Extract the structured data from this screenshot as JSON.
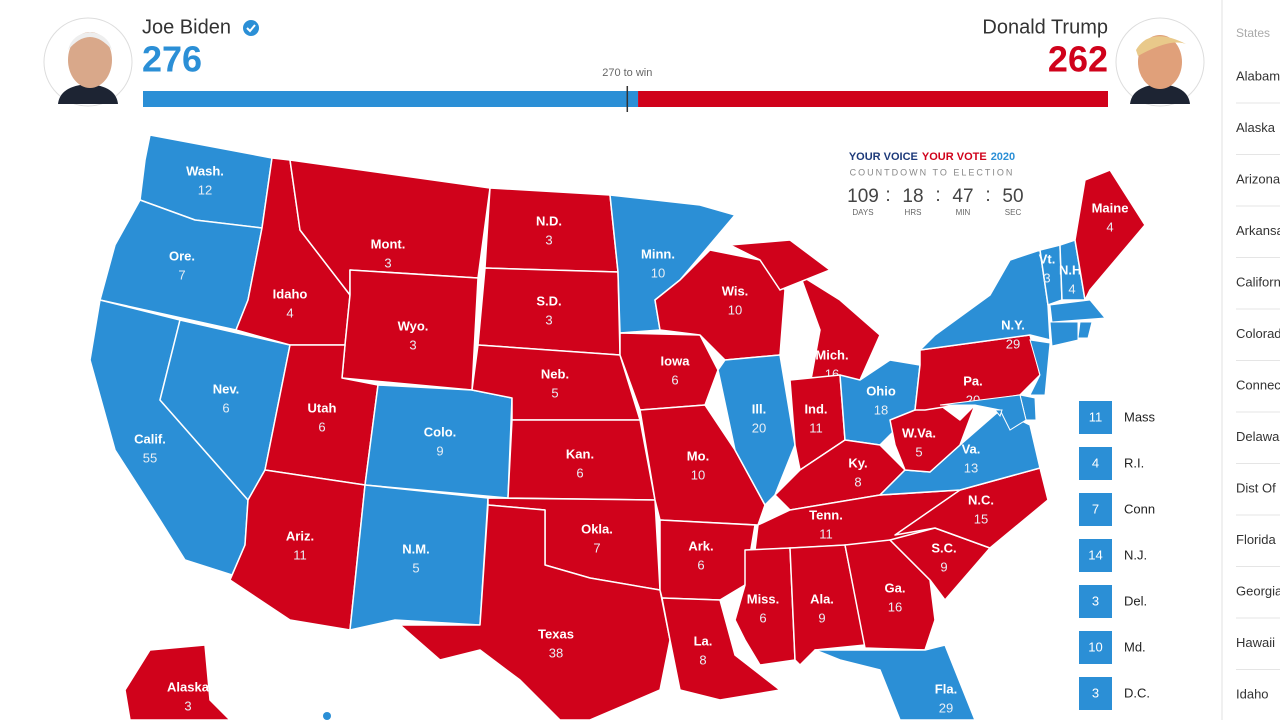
{
  "header": {
    "candidates": [
      {
        "name": "Joe Biden",
        "votes": 276,
        "color": "#2b8fd6"
      },
      {
        "name": "Donald Trump",
        "votes": 262,
        "color": "#d0021b"
      }
    ],
    "threshold": {
      "value": 270,
      "label": "270 to win"
    }
  },
  "countdown": {
    "title": [
      "YOUR VOICE",
      "YOUR VOTE",
      "2020"
    ],
    "subtitle": "COUNTDOWN TO ELECTION",
    "separator": ":",
    "units": [
      {
        "value": 109,
        "label": "DAYS"
      },
      {
        "value": 18,
        "label": "HRS"
      },
      {
        "value": 47,
        "label": "MIN"
      },
      {
        "value": 50,
        "label": "SEC"
      }
    ]
  },
  "map": {
    "states": [
      {
        "label": "Wash.",
        "votes": 12,
        "color": "#2b8fd6"
      },
      {
        "label": "Ore.",
        "votes": 7,
        "color": "#2b8fd6"
      },
      {
        "label": "Calif.",
        "votes": 55,
        "color": "#2b8fd6"
      },
      {
        "label": "Nev.",
        "votes": 6,
        "color": "#2b8fd6"
      },
      {
        "label": "Idaho",
        "votes": 4,
        "color": "#d0021b"
      },
      {
        "label": "Mont.",
        "votes": 3,
        "color": "#d0021b"
      },
      {
        "label": "Wyo.",
        "votes": 3,
        "color": "#d0021b"
      },
      {
        "label": "Utah",
        "votes": 6,
        "color": "#d0021b"
      },
      {
        "label": "Ariz.",
        "votes": 11,
        "color": "#d0021b"
      },
      {
        "label": "Colo.",
        "votes": 9,
        "color": "#2b8fd6"
      },
      {
        "label": "N.M.",
        "votes": 5,
        "color": "#2b8fd6"
      },
      {
        "label": "N.D.",
        "votes": 3,
        "color": "#d0021b"
      },
      {
        "label": "S.D.",
        "votes": 3,
        "color": "#d0021b"
      },
      {
        "label": "Neb.",
        "votes": 5,
        "color": "#d0021b"
      },
      {
        "label": "Kan.",
        "votes": 6,
        "color": "#d0021b"
      },
      {
        "label": "Okla.",
        "votes": 7,
        "color": "#d0021b"
      },
      {
        "label": "Texas",
        "votes": 38,
        "color": "#d0021b"
      },
      {
        "label": "Minn.",
        "votes": 10,
        "color": "#2b8fd6"
      },
      {
        "label": "Iowa",
        "votes": 6,
        "color": "#d0021b"
      },
      {
        "label": "Mo.",
        "votes": 10,
        "color": "#d0021b"
      },
      {
        "label": "Ark.",
        "votes": 6,
        "color": "#d0021b"
      },
      {
        "label": "La.",
        "votes": 8,
        "color": "#d0021b"
      },
      {
        "label": "Wis.",
        "votes": 10,
        "color": "#d0021b"
      },
      {
        "label": "Ill.",
        "votes": 20,
        "color": "#2b8fd6"
      },
      {
        "label": "Mich.",
        "votes": 16,
        "color": "#d0021b"
      },
      {
        "label": "Ind.",
        "votes": 11,
        "color": "#d0021b"
      },
      {
        "label": "Ohio",
        "votes": 18,
        "color": "#2b8fd6"
      },
      {
        "label": "Ky.",
        "votes": 8,
        "color": "#d0021b"
      },
      {
        "label": "Tenn.",
        "votes": 11,
        "color": "#d0021b"
      },
      {
        "label": "Miss.",
        "votes": 6,
        "color": "#d0021b"
      },
      {
        "label": "Ala.",
        "votes": 9,
        "color": "#d0021b"
      },
      {
        "label": "Ga.",
        "votes": 16,
        "color": "#d0021b"
      },
      {
        "label": "Fla.",
        "votes": 29,
        "color": "#2b8fd6"
      },
      {
        "label": "S.C.",
        "votes": 9,
        "color": "#d0021b"
      },
      {
        "label": "N.C.",
        "votes": 15,
        "color": "#d0021b"
      },
      {
        "label": "Va.",
        "votes": 13,
        "color": "#2b8fd6"
      },
      {
        "label": "W.Va.",
        "votes": 5,
        "color": "#d0021b"
      },
      {
        "label": "Pa.",
        "votes": 20,
        "color": "#d0021b"
      },
      {
        "label": "N.Y.",
        "votes": 29,
        "color": "#2b8fd6"
      },
      {
        "label": "Vt.",
        "votes": 3,
        "color": "#2b8fd6"
      },
      {
        "label": "N.H.",
        "votes": 4,
        "color": "#2b8fd6"
      },
      {
        "label": "Maine",
        "votes": 4,
        "color": "#d0021b"
      },
      {
        "label": "Alaska",
        "votes": 3,
        "color": "#d0021b"
      }
    ],
    "small_states": [
      {
        "label": "Mass",
        "votes": 11,
        "color": "#2b8fd6"
      },
      {
        "label": "R.I.",
        "votes": 4,
        "color": "#2b8fd6"
      },
      {
        "label": "Conn",
        "votes": 7,
        "color": "#2b8fd6"
      },
      {
        "label": "N.J.",
        "votes": 14,
        "color": "#2b8fd6"
      },
      {
        "label": "Del.",
        "votes": 3,
        "color": "#2b8fd6"
      },
      {
        "label": "Md.",
        "votes": 10,
        "color": "#2b8fd6"
      },
      {
        "label": "D.C.",
        "votes": 3,
        "color": "#2b8fd6"
      }
    ]
  },
  "sidebar": {
    "title": "States",
    "items": [
      "Alabama",
      "Alaska",
      "Arizona",
      "Arkansas",
      "California",
      "Colorado",
      "Connecticut",
      "Delaware",
      "Dist Of Columbia",
      "Florida",
      "Georgia",
      "Hawaii",
      "Idaho"
    ]
  }
}
